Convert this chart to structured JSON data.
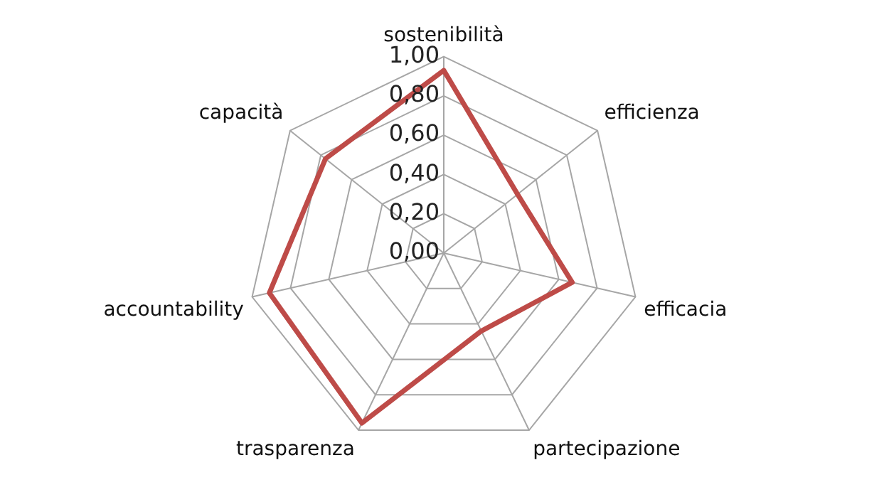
{
  "chart_data": {
    "type": "radar",
    "categories": [
      "sostenibilità",
      "efficienza",
      "efficacia",
      "partecipazione",
      "trasparenza",
      "accountability",
      "capacità"
    ],
    "series": [
      {
        "color": "#be4b48",
        "values": [
          0.93,
          0.48,
          0.67,
          0.44,
          0.96,
          0.91,
          0.77
        ]
      }
    ],
    "ylim": [
      0,
      1
    ],
    "yticks": [
      {
        "value": 0,
        "label": "0,00"
      },
      {
        "value": 0.2,
        "label": "0,20"
      },
      {
        "value": 0.4,
        "label": "0,40"
      },
      {
        "value": 0.6,
        "label": "0,60"
      },
      {
        "value": 0.8,
        "label": "0,80"
      },
      {
        "value": 1,
        "label": "1,00"
      }
    ],
    "grid": true,
    "legend": false,
    "marker": "none"
  }
}
